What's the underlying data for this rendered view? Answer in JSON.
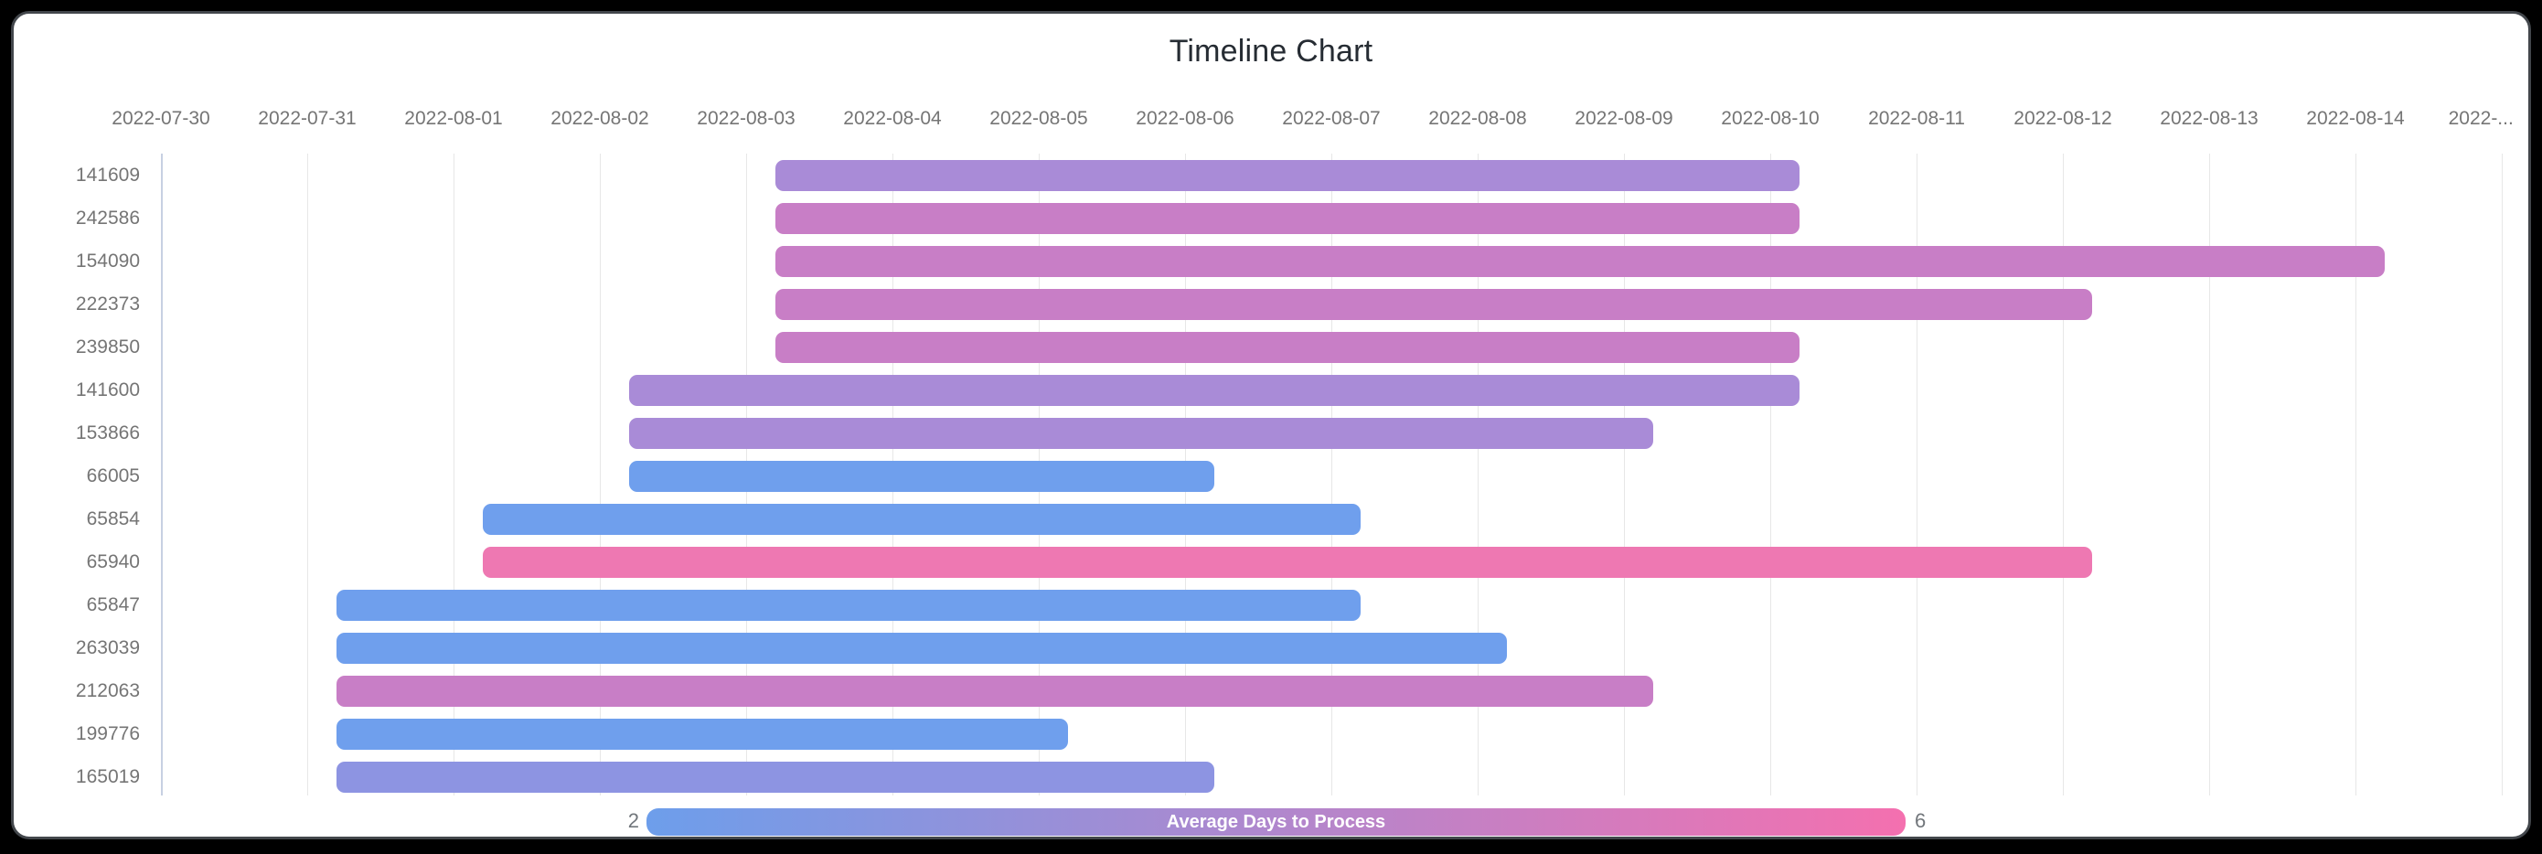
{
  "window": {
    "frame_color": "#000000",
    "card_background": "#ffffff",
    "card_border_color": "#43474c"
  },
  "chart_data": {
    "type": "timeline",
    "title": "Timeline Chart",
    "title_color": "#262c33",
    "axis_text_color": "#757575",
    "grid_on": true,
    "x_axis": {
      "unit": "date",
      "range_start": "2022-07-30",
      "range_end": "2022-08-15",
      "tick_labels": [
        "2022-07-30",
        "2022-07-31",
        "2022-08-01",
        "2022-08-02",
        "2022-08-03",
        "2022-08-04",
        "2022-08-05",
        "2022-08-06",
        "2022-08-07",
        "2022-08-08",
        "2022-08-09",
        "2022-08-10",
        "2022-08-11",
        "2022-08-12",
        "2022-08-13",
        "2022-08-14",
        "2022-..."
      ]
    },
    "rows": [
      {
        "label": "141609",
        "start": "2022-08-03",
        "end": "2022-08-10",
        "color": "#a98bd7",
        "avg_days_to_process": 4
      },
      {
        "label": "242586",
        "start": "2022-08-03",
        "end": "2022-08-10",
        "color": "#c87ec6",
        "avg_days_to_process": 5
      },
      {
        "label": "154090",
        "start": "2022-08-03",
        "end": "2022-08-14",
        "color": "#c87ec6",
        "avg_days_to_process": 5
      },
      {
        "label": "222373",
        "start": "2022-08-03",
        "end": "2022-08-12",
        "color": "#c87ec6",
        "avg_days_to_process": 5
      },
      {
        "label": "239850",
        "start": "2022-08-03",
        "end": "2022-08-10",
        "color": "#c87ec6",
        "avg_days_to_process": 5
      },
      {
        "label": "141600",
        "start": "2022-08-02",
        "end": "2022-08-10",
        "color": "#a98bd7",
        "avg_days_to_process": 4
      },
      {
        "label": "153866",
        "start": "2022-08-02",
        "end": "2022-08-09",
        "color": "#a98bd7",
        "avg_days_to_process": 4
      },
      {
        "label": "66005",
        "start": "2022-08-02",
        "end": "2022-08-06",
        "color": "#6f9fed",
        "avg_days_to_process": 2
      },
      {
        "label": "65854",
        "start": "2022-08-01",
        "end": "2022-08-07",
        "color": "#6f9fed",
        "avg_days_to_process": 2
      },
      {
        "label": "65940",
        "start": "2022-08-01",
        "end": "2022-08-12",
        "color": "#ee78b2",
        "avg_days_to_process": 6
      },
      {
        "label": "65847",
        "start": "2022-07-31",
        "end": "2022-08-07",
        "color": "#6f9fed",
        "avg_days_to_process": 2
      },
      {
        "label": "263039",
        "start": "2022-07-31",
        "end": "2022-08-08",
        "color": "#6f9fed",
        "avg_days_to_process": 2
      },
      {
        "label": "212063",
        "start": "2022-07-31",
        "end": "2022-08-09",
        "color": "#c87ec6",
        "avg_days_to_process": 5
      },
      {
        "label": "199776",
        "start": "2022-07-31",
        "end": "2022-08-05",
        "color": "#6f9fed",
        "avg_days_to_process": 2
      },
      {
        "label": "165019",
        "start": "2022-07-31",
        "end": "2022-08-06",
        "color": "#8d94e2",
        "avg_days_to_process": 3
      }
    ],
    "colorbar": {
      "label": "Average Days to Process",
      "min_label": "2",
      "max_label": "6",
      "start_color": "#6d9eeb",
      "end_color": "#f470af"
    },
    "legend_position": "bottom"
  }
}
